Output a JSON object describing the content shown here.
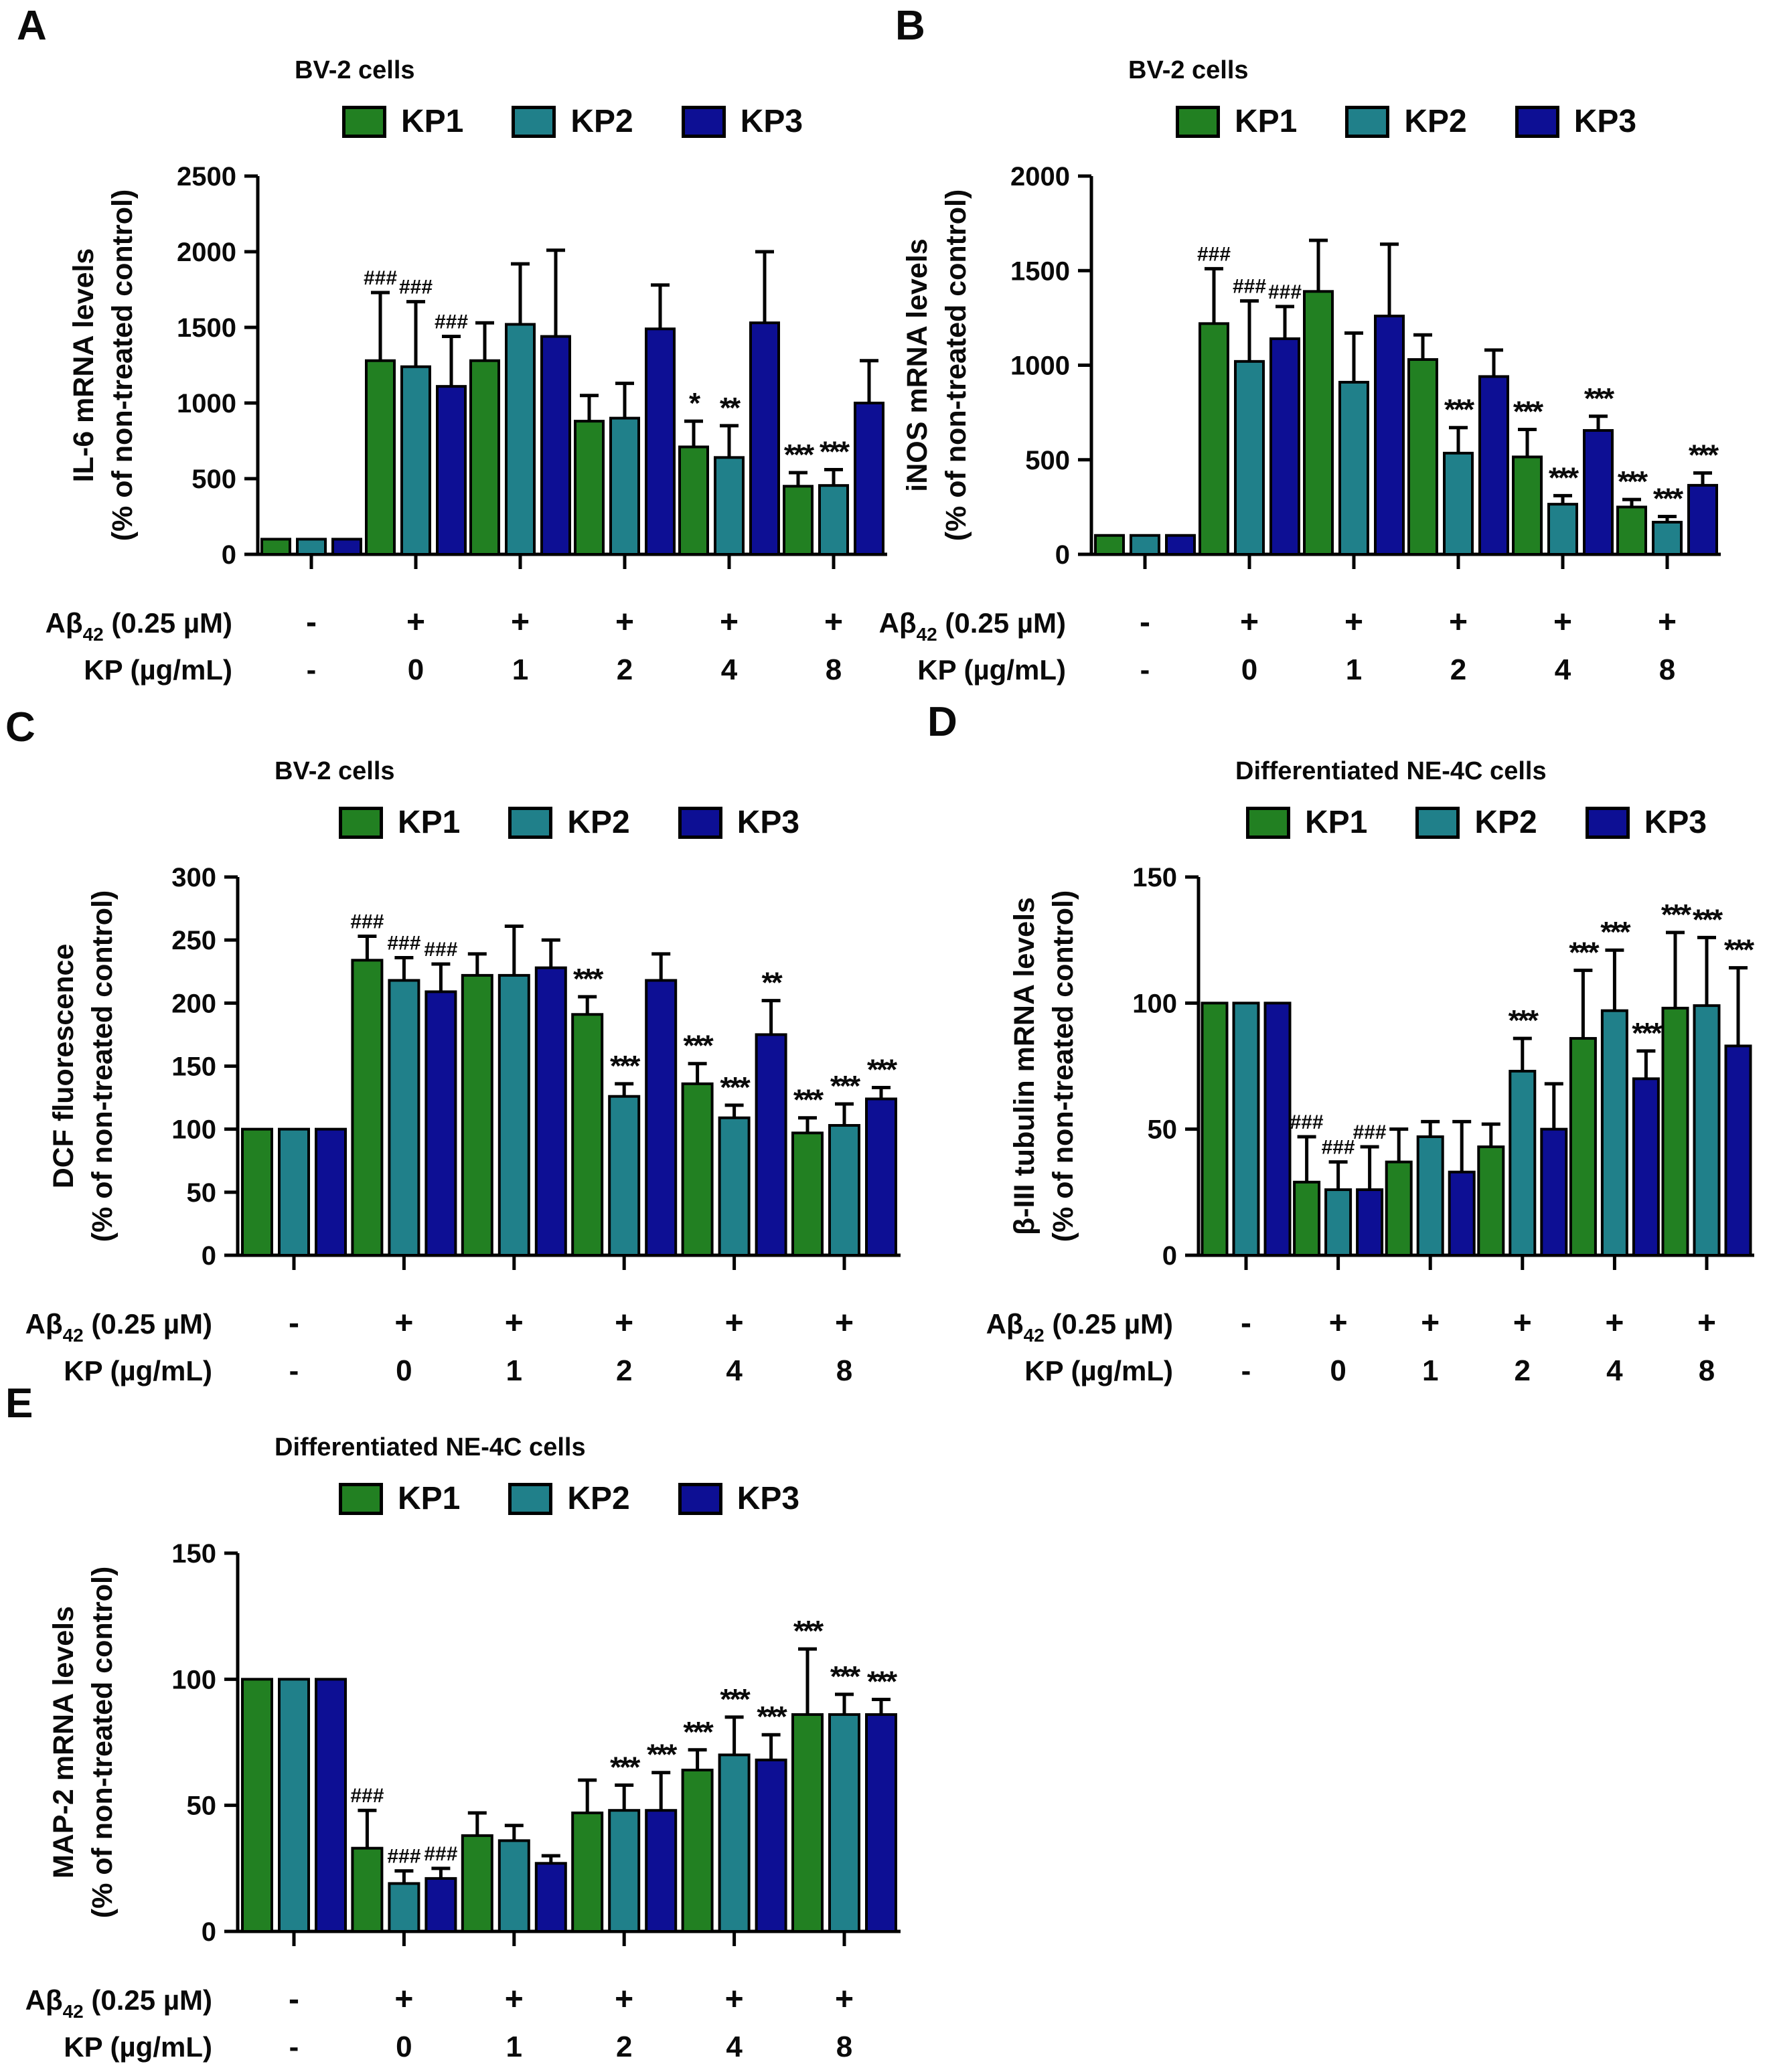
{
  "colors": {
    "KP1": "#228022",
    "KP2": "#20808a",
    "KP3": "#0d0f94",
    "bar_border": "#000000",
    "axis": "#000000",
    "text": "#0a0a0a"
  },
  "row_labels": {
    "abeta_prefix": "Aβ",
    "abeta_sub": "42",
    "abeta_suffix": " (0.25 µM)",
    "kp": "KP (µg/mL)"
  },
  "chart_data": [
    {
      "panel": "A",
      "type": "bar",
      "title": "BV-2 cells",
      "ylabel": "IL-6 mRNA levels",
      "ylabel2": "(% of non-treated control)",
      "ylim": [
        0,
        2500
      ],
      "ytick_step": 500,
      "grid": false,
      "legend": [
        "KP1",
        "KP2",
        "KP3"
      ],
      "legend_position": "top",
      "abeta": [
        "-",
        "+",
        "+",
        "+",
        "+",
        "+"
      ],
      "kp": [
        "-",
        "0",
        "1",
        "2",
        "4",
        "8"
      ],
      "series": [
        {
          "name": "KP1",
          "values": [
            100,
            1280,
            1280,
            880,
            710,
            450
          ],
          "errors": [
            0,
            450,
            250,
            170,
            170,
            90
          ],
          "annotations": [
            "",
            "###",
            "",
            "",
            "*",
            "***"
          ]
        },
        {
          "name": "KP2",
          "values": [
            100,
            1240,
            1520,
            900,
            640,
            455
          ],
          "errors": [
            0,
            430,
            400,
            230,
            210,
            105
          ],
          "annotations": [
            "",
            "###",
            "",
            "",
            "**",
            "***"
          ]
        },
        {
          "name": "KP3",
          "values": [
            100,
            1110,
            1440,
            1490,
            1530,
            1000
          ],
          "errors": [
            0,
            330,
            570,
            290,
            470,
            280
          ],
          "annotations": [
            "",
            "###",
            "",
            "",
            "",
            ""
          ]
        }
      ]
    },
    {
      "panel": "B",
      "type": "bar",
      "title": "BV-2 cells",
      "ylabel": "iNOS mRNA levels",
      "ylabel2": "(% of non-treated control)",
      "ylim": [
        0,
        2000
      ],
      "ytick_step": 500,
      "grid": false,
      "legend": [
        "KP1",
        "KP2",
        "KP3"
      ],
      "legend_position": "top",
      "abeta": [
        "-",
        "+",
        "+",
        "+",
        "+",
        "+"
      ],
      "kp": [
        "-",
        "0",
        "1",
        "2",
        "4",
        "8"
      ],
      "series": [
        {
          "name": "KP1",
          "values": [
            100,
            1220,
            1390,
            1030,
            515,
            250
          ],
          "errors": [
            0,
            290,
            270,
            130,
            145,
            40
          ],
          "annotations": [
            "",
            "###",
            "",
            "",
            "***",
            "***"
          ]
        },
        {
          "name": "KP2",
          "values": [
            100,
            1020,
            910,
            535,
            265,
            170
          ],
          "errors": [
            0,
            320,
            260,
            135,
            45,
            30
          ],
          "annotations": [
            "",
            "###",
            "",
            "***",
            "***",
            "***"
          ]
        },
        {
          "name": "KP3",
          "values": [
            100,
            1140,
            1260,
            940,
            655,
            365
          ],
          "errors": [
            0,
            170,
            380,
            140,
            75,
            65
          ],
          "annotations": [
            "",
            "###",
            "",
            "",
            "***",
            "***"
          ]
        }
      ]
    },
    {
      "panel": "C",
      "type": "bar",
      "title": "BV-2 cells",
      "ylabel": "DCF fluorescence",
      "ylabel2": "(% of non-treated control)",
      "ylim": [
        0,
        300
      ],
      "ytick_step": 50,
      "grid": false,
      "legend": [
        "KP1",
        "KP2",
        "KP3"
      ],
      "legend_position": "top",
      "abeta": [
        "-",
        "+",
        "+",
        "+",
        "+",
        "+"
      ],
      "kp": [
        "-",
        "0",
        "1",
        "2",
        "4",
        "8"
      ],
      "series": [
        {
          "name": "KP1",
          "values": [
            100,
            234,
            222,
            191,
            136,
            97
          ],
          "errors": [
            0,
            19,
            17,
            14,
            16,
            12
          ],
          "annotations": [
            "",
            "###",
            "",
            "***",
            "***",
            "***"
          ]
        },
        {
          "name": "KP2",
          "values": [
            100,
            218,
            222,
            126,
            109,
            103
          ],
          "errors": [
            0,
            18,
            39,
            10,
            10,
            17
          ],
          "annotations": [
            "",
            "###",
            "",
            "***",
            "***",
            "***"
          ]
        },
        {
          "name": "KP3",
          "values": [
            100,
            209,
            228,
            218,
            175,
            124
          ],
          "errors": [
            0,
            22,
            22,
            21,
            27,
            9
          ],
          "annotations": [
            "",
            "###",
            "",
            "",
            "**",
            "***"
          ]
        }
      ]
    },
    {
      "panel": "D",
      "type": "bar",
      "title": "Differentiated NE-4C cells",
      "ylabel": "β-III tubulin mRNA levels",
      "ylabel2": "(% of non-treated control)",
      "ylim": [
        0,
        150
      ],
      "ytick_step": 50,
      "grid": false,
      "legend": [
        "KP1",
        "KP2",
        "KP3"
      ],
      "legend_position": "top",
      "abeta": [
        "-",
        "+",
        "+",
        "+",
        "+",
        "+"
      ],
      "kp": [
        "-",
        "0",
        "1",
        "2",
        "4",
        "8"
      ],
      "series": [
        {
          "name": "KP1",
          "values": [
            100,
            29,
            37,
            43,
            86,
            98
          ],
          "errors": [
            0,
            18,
            13,
            9,
            27,
            30
          ],
          "annotations": [
            "",
            "###",
            "",
            "",
            "***",
            "***"
          ]
        },
        {
          "name": "KP2",
          "values": [
            100,
            26,
            47,
            73,
            97,
            99
          ],
          "errors": [
            0,
            11,
            6,
            13,
            24,
            27
          ],
          "annotations": [
            "",
            "###",
            "",
            "***",
            "***",
            "***"
          ]
        },
        {
          "name": "KP3",
          "values": [
            100,
            26,
            33,
            50,
            70,
            83
          ],
          "errors": [
            0,
            17,
            20,
            18,
            11,
            31
          ],
          "annotations": [
            "",
            "###",
            "",
            "",
            "***",
            "***"
          ]
        }
      ]
    },
    {
      "panel": "E",
      "type": "bar",
      "title": "Differentiated NE-4C cells",
      "ylabel": "MAP-2 mRNA levels",
      "ylabel2": "(% of non-treated control)",
      "ylim": [
        0,
        150
      ],
      "ytick_step": 50,
      "grid": false,
      "legend": [
        "KP1",
        "KP2",
        "KP3"
      ],
      "legend_position": "top",
      "abeta": [
        "-",
        "+",
        "+",
        "+",
        "+",
        "+"
      ],
      "kp": [
        "-",
        "0",
        "1",
        "2",
        "4",
        "8"
      ],
      "series": [
        {
          "name": "KP1",
          "values": [
            100,
            33,
            38,
            47,
            64,
            86
          ],
          "errors": [
            0,
            15,
            9,
            13,
            8,
            26
          ],
          "annotations": [
            "",
            "###",
            "",
            "",
            "***",
            "***"
          ]
        },
        {
          "name": "KP2",
          "values": [
            100,
            19,
            36,
            48,
            70,
            86
          ],
          "errors": [
            0,
            5,
            6,
            10,
            15,
            8
          ],
          "annotations": [
            "",
            "###",
            "",
            "***",
            "***",
            "***"
          ]
        },
        {
          "name": "KP3",
          "values": [
            100,
            21,
            27,
            48,
            68,
            86
          ],
          "errors": [
            0,
            4,
            3,
            15,
            10,
            6
          ],
          "annotations": [
            "",
            "###",
            "",
            "***",
            "***",
            "***"
          ]
        }
      ]
    }
  ]
}
